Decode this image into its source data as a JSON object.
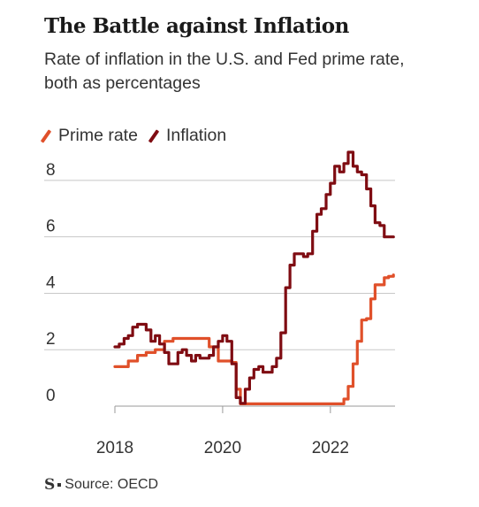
{
  "title": "The Battle against Inflation",
  "subtitle": "Rate of inflation in the U.S. and Fed prime rate, both as percentages",
  "source": "Source: OECD",
  "logo_text": "S",
  "colors": {
    "prime_rate": "#e0502a",
    "inflation": "#7f0c12",
    "grid": "#c8c8c8",
    "axis": "#999999",
    "text": "#333333"
  },
  "chart_data": {
    "type": "line",
    "title": "The Battle against Inflation",
    "subtitle": "Rate of inflation in the U.S. and Fed prime rate, both as percentages",
    "xlabel": "",
    "ylabel": "",
    "xlim": [
      2018,
      2023.2
    ],
    "ylim": [
      0,
      9
    ],
    "xticks": [
      2018,
      2020,
      2022
    ],
    "yticks": [
      0,
      2,
      4,
      6,
      8
    ],
    "grid": true,
    "legend": "top-left",
    "step": true,
    "series": [
      {
        "name": "Prime rate",
        "color": "#e0502a",
        "x": [
          2018.0,
          2018.25,
          2018.42,
          2018.58,
          2018.75,
          2018.92,
          2019.08,
          2019.58,
          2019.75,
          2019.92,
          2020.17,
          2020.25,
          2020.33,
          2022.17,
          2022.25,
          2022.33,
          2022.42,
          2022.5,
          2022.58,
          2022.67,
          2022.75,
          2022.83,
          2022.92,
          2023.0,
          2023.08,
          2023.17
        ],
        "values": [
          1.4,
          1.6,
          1.8,
          1.9,
          2.0,
          2.3,
          2.4,
          2.4,
          2.1,
          1.6,
          1.55,
          0.6,
          0.08,
          0.08,
          0.25,
          0.7,
          1.5,
          2.3,
          3.05,
          3.1,
          3.8,
          4.3,
          4.3,
          4.55,
          4.6,
          4.65
        ]
      },
      {
        "name": "Inflation",
        "color": "#7f0c12",
        "x": [
          2018.0,
          2018.08,
          2018.17,
          2018.25,
          2018.33,
          2018.42,
          2018.58,
          2018.67,
          2018.75,
          2018.83,
          2018.92,
          2019.0,
          2019.08,
          2019.17,
          2019.25,
          2019.33,
          2019.42,
          2019.5,
          2019.58,
          2019.67,
          2019.75,
          2019.83,
          2019.92,
          2020.0,
          2020.08,
          2020.17,
          2020.25,
          2020.33,
          2020.42,
          2020.5,
          2020.58,
          2020.67,
          2020.75,
          2020.83,
          2020.92,
          2021.0,
          2021.08,
          2021.17,
          2021.25,
          2021.33,
          2021.5,
          2021.58,
          2021.67,
          2021.75,
          2021.83,
          2021.92,
          2022.0,
          2022.08,
          2022.17,
          2022.25,
          2022.33,
          2022.42,
          2022.5,
          2022.58,
          2022.67,
          2022.75,
          2022.83,
          2022.92,
          2023.0,
          2023.08,
          2023.17
        ],
        "values": [
          2.1,
          2.2,
          2.4,
          2.5,
          2.8,
          2.9,
          2.7,
          2.3,
          2.5,
          2.2,
          1.9,
          1.5,
          1.5,
          1.9,
          2.0,
          1.8,
          1.6,
          1.8,
          1.7,
          1.7,
          1.8,
          2.1,
          2.3,
          2.5,
          2.3,
          1.5,
          0.3,
          0.1,
          0.6,
          1.0,
          1.3,
          1.4,
          1.2,
          1.2,
          1.4,
          1.7,
          2.6,
          4.2,
          5.0,
          5.4,
          5.3,
          5.4,
          6.2,
          6.8,
          7.0,
          7.5,
          7.9,
          8.5,
          8.3,
          8.6,
          9.0,
          8.5,
          8.3,
          8.2,
          7.7,
          7.1,
          6.5,
          6.4,
          6.0,
          6.0,
          6.0
        ]
      }
    ]
  }
}
